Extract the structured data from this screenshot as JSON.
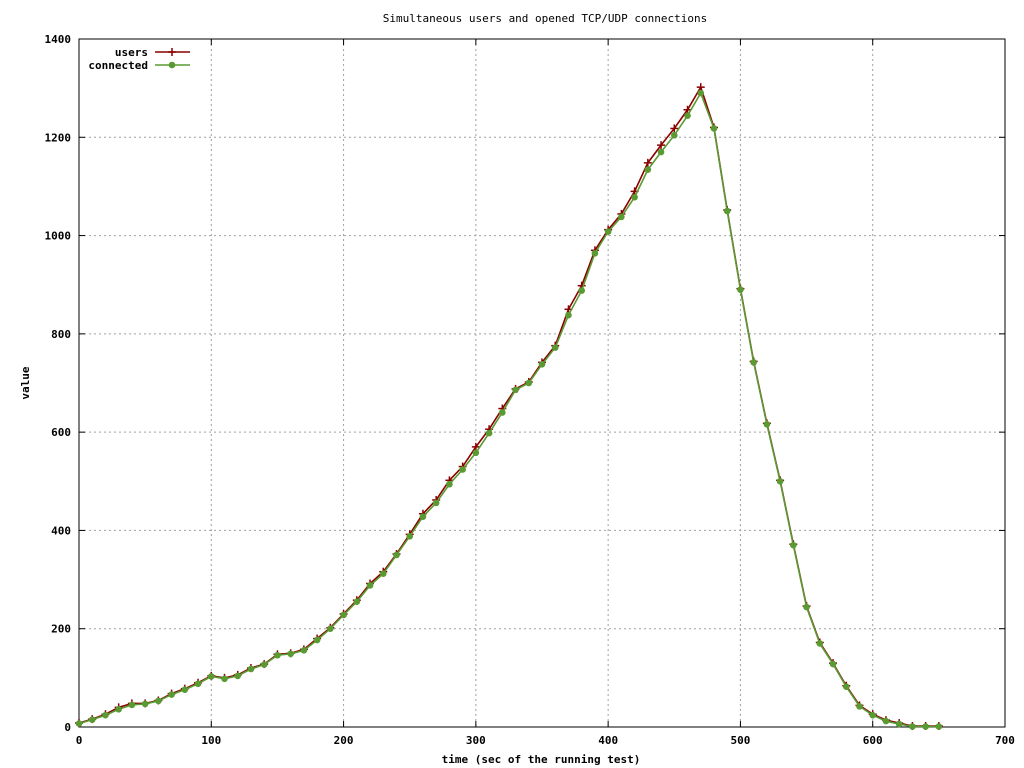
{
  "chart_data": {
    "type": "line",
    "title": "Simultaneous users and opened TCP/UDP connections",
    "xlabel": "time (sec of the running test)",
    "ylabel": "value",
    "xlim": [
      0,
      700
    ],
    "ylim": [
      0,
      1400
    ],
    "xticks": [
      "0",
      "100",
      "200",
      "300",
      "400",
      "500",
      "600",
      "700"
    ],
    "yticks": [
      "0",
      "200",
      "400",
      "600",
      "800",
      "1000",
      "1200",
      "1400"
    ],
    "grid": true,
    "legend_position": "top-left",
    "x": [
      0,
      10,
      20,
      30,
      40,
      50,
      60,
      70,
      80,
      90,
      100,
      110,
      120,
      130,
      140,
      150,
      160,
      170,
      180,
      190,
      200,
      210,
      220,
      230,
      240,
      250,
      260,
      270,
      280,
      290,
      300,
      310,
      320,
      330,
      340,
      350,
      360,
      370,
      380,
      390,
      400,
      410,
      420,
      430,
      440,
      450,
      460,
      470,
      480,
      490,
      500,
      510,
      520,
      530,
      540,
      550,
      560,
      570,
      580,
      590,
      600,
      610,
      620,
      630,
      640,
      650
    ],
    "series": [
      {
        "name": "users",
        "color": "#8b0000",
        "marker": "plus",
        "values": [
          8,
          16,
          26,
          40,
          48,
          48,
          54,
          68,
          78,
          90,
          104,
          100,
          106,
          120,
          128,
          148,
          150,
          158,
          180,
          202,
          230,
          258,
          292,
          316,
          352,
          392,
          434,
          462,
          502,
          530,
          570,
          606,
          648,
          688,
          702,
          742,
          776,
          850,
          898,
          970,
          1012,
          1044,
          1090,
          1148,
          1184,
          1218,
          1256,
          1302,
          1220,
          1052,
          892,
          744,
          618,
          502,
          372,
          246,
          172,
          130,
          84,
          44,
          26,
          14,
          8,
          2,
          2,
          2
        ]
      },
      {
        "name": "connected",
        "color": "#5a9a32",
        "marker": "circle",
        "values": [
          7,
          15,
          24,
          36,
          45,
          47,
          53,
          66,
          76,
          88,
          103,
          98,
          104,
          118,
          127,
          146,
          149,
          156,
          177,
          200,
          228,
          255,
          288,
          312,
          350,
          388,
          428,
          456,
          494,
          524,
          558,
          598,
          640,
          686,
          700,
          738,
          772,
          838,
          888,
          964,
          1008,
          1038,
          1078,
          1134,
          1170,
          1204,
          1244,
          1290,
          1218,
          1050,
          890,
          742,
          616,
          500,
          370,
          244,
          170,
          128,
          82,
          42,
          24,
          12,
          6,
          1,
          1,
          1
        ]
      }
    ]
  }
}
